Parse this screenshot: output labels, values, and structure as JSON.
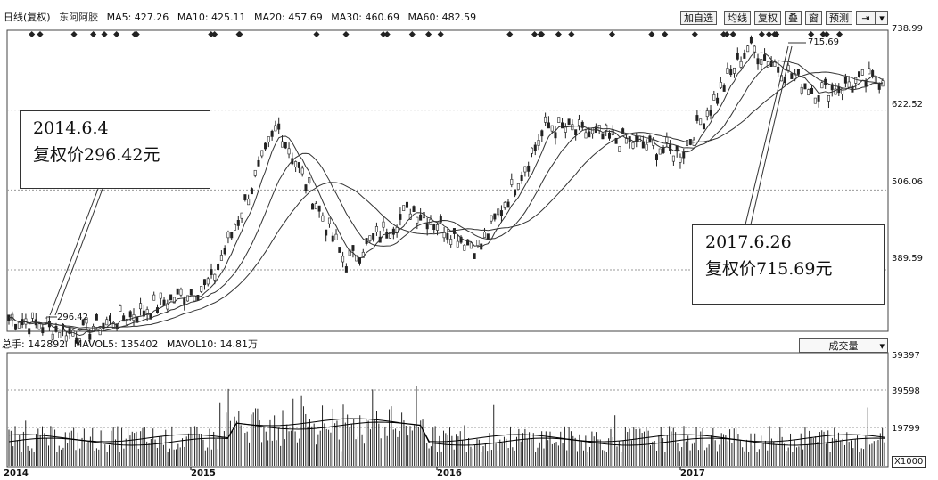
{
  "header": {
    "chart_name": "日线(复权)",
    "stock_name": "东阿阿胶",
    "ma5": "MA5: 427.26",
    "ma10": "MA10: 425.11",
    "ma20": "MA20: 457.69",
    "ma30": "MA30: 460.69",
    "ma60": "MA60: 482.59"
  },
  "toolbar": {
    "buttons": [
      "加自选",
      "均线",
      "复权",
      "叠",
      "窗",
      "预测"
    ]
  },
  "price_axis": {
    "labels": [
      "738.99",
      "622.52",
      "506.06",
      "389.59"
    ]
  },
  "annotations": {
    "low": {
      "date": "2014.6.4",
      "text": "复权价296.42元",
      "marker": "296.42"
    },
    "high": {
      "date": "2017.6.26",
      "text": "复权价715.69元",
      "marker": "715.69"
    }
  },
  "volume": {
    "header_total": "总手: 142892",
    "mavol5": "MAVOL5: 135402",
    "mavol10": "MAVOL10: 14.81万",
    "selector": "成交量",
    "axis_labels": [
      "59397",
      "39598",
      "19799"
    ],
    "unit": "X1000"
  },
  "x_axis": {
    "years": [
      "2014",
      "2015",
      "2016",
      "2017"
    ]
  },
  "colors": {
    "candle": "#222222",
    "ma_line": "#333333",
    "grid": "#9a9a9a"
  },
  "chart_data": {
    "type": "line",
    "x": [
      "2014-01",
      "2014-06",
      "2014-10",
      "2015-01",
      "2015-06",
      "2015-08",
      "2015-12",
      "2016-03",
      "2016-06",
      "2016-10",
      "2017-01",
      "2017-06",
      "2017-09",
      "2017-12"
    ],
    "series": [
      {
        "name": "",
        "values": [
          320,
          296.42,
          330,
          370,
          600,
          400,
          480,
          420,
          600,
          580,
          560,
          715.69,
          650,
          670
        ]
      }
    ],
    "ylim": [
      300,
      739
    ]
  }
}
